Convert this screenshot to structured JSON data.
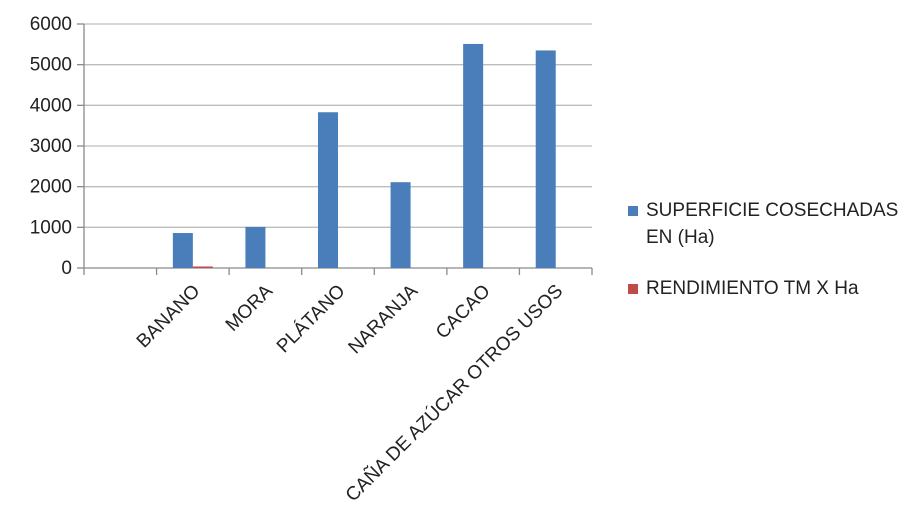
{
  "chart_data": {
    "type": "bar",
    "categories": [
      "",
      "BANANO",
      "MORA",
      "PLÁTANO",
      "NARANJA",
      "CACAO",
      "CAÑA DE AZÚCAR OTROS USOS"
    ],
    "series": [
      {
        "name": "SUPERFICIE COSECHADAS EN (Ha)",
        "values": [
          0,
          860,
          1010,
          3830,
          2110,
          5510,
          5350
        ],
        "color": "#4a7ebb"
      },
      {
        "name": "RENDIMIENTO TM X Ha",
        "values": [
          0,
          20,
          0,
          0,
          0,
          0,
          0
        ],
        "color": "#be4b48"
      }
    ],
    "ylim": [
      0,
      6000
    ],
    "yticks": [
      0,
      1000,
      2000,
      3000,
      4000,
      5000,
      6000
    ],
    "title": "",
    "xlabel": "",
    "ylabel": "",
    "grid": true,
    "legend_position": "right",
    "legend": {
      "items": [
        {
          "lines": [
            "SUPERFICIE COSECHADAS",
            "EN (Ha)"
          ],
          "color": "#4a7ebb"
        },
        {
          "lines": [
            "RENDIMIENTO TM X Ha"
          ],
          "color": "#be4b48"
        }
      ]
    }
  }
}
